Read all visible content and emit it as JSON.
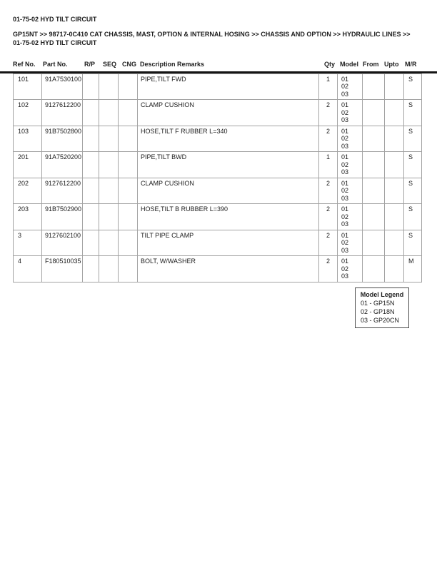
{
  "page": {
    "title": "01-75-02 HYD TILT CIRCUIT",
    "breadcrumb_line1": "GP15NT >> 98717-0C410 CAT CHASSIS, MAST, OPTION & INTERNAL HOSING >> CHASSIS AND OPTION >> HYDRAULIC LINES >>",
    "breadcrumb_line2": "01-75-02 HYD TILT CIRCUIT"
  },
  "table": {
    "headers": [
      "Ref No.",
      "Part No.",
      "R/P",
      "SEQ",
      "CNG",
      "Description Remarks",
      "Qty",
      "Model",
      "From",
      "Upto",
      "M/R"
    ],
    "rows": [
      {
        "ref": "101",
        "part": "91A7530100",
        "rp": "",
        "seq": "",
        "cng": "",
        "desc": "PIPE,TILT FWD",
        "qty": "1",
        "models": [
          "01",
          "02",
          "03"
        ],
        "from": "",
        "upto": "",
        "mr": "S"
      },
      {
        "ref": "102",
        "part": "9127612200",
        "rp": "",
        "seq": "",
        "cng": "",
        "desc": "CLAMP CUSHION",
        "qty": "2",
        "models": [
          "01",
          "02",
          "03"
        ],
        "from": "",
        "upto": "",
        "mr": "S"
      },
      {
        "ref": "103",
        "part": "91B7502800",
        "rp": "",
        "seq": "",
        "cng": "",
        "desc": "HOSE,TILT F RUBBER L=340",
        "qty": "2",
        "models": [
          "01",
          "02",
          "03"
        ],
        "from": "",
        "upto": "",
        "mr": "S"
      },
      {
        "ref": "201",
        "part": "91A7520200",
        "rp": "",
        "seq": "",
        "cng": "",
        "desc": "PIPE,TILT BWD",
        "qty": "1",
        "models": [
          "01",
          "02",
          "03"
        ],
        "from": "",
        "upto": "",
        "mr": "S"
      },
      {
        "ref": "202",
        "part": "9127612200",
        "rp": "",
        "seq": "",
        "cng": "",
        "desc": "CLAMP CUSHION",
        "qty": "2",
        "models": [
          "01",
          "02",
          "03"
        ],
        "from": "",
        "upto": "",
        "mr": "S"
      },
      {
        "ref": "203",
        "part": "91B7502900",
        "rp": "",
        "seq": "",
        "cng": "",
        "desc": "HOSE,TILT B RUBBER L=390",
        "qty": "2",
        "models": [
          "01",
          "02",
          "03"
        ],
        "from": "",
        "upto": "",
        "mr": "S"
      },
      {
        "ref": "3",
        "part": "9127602100",
        "rp": "",
        "seq": "",
        "cng": "",
        "desc": "TILT PIPE CLAMP",
        "qty": "2",
        "models": [
          "01",
          "02",
          "03"
        ],
        "from": "",
        "upto": "",
        "mr": "S"
      },
      {
        "ref": "4",
        "part": "F180510035",
        "rp": "",
        "seq": "",
        "cng": "",
        "desc": "BOLT, W/WASHER",
        "qty": "2",
        "models": [
          "01",
          "02",
          "03"
        ],
        "from": "",
        "upto": "",
        "mr": "M"
      }
    ]
  },
  "legend": {
    "title": "Model Legend",
    "items": [
      "01 - GP15N",
      "02 - GP18N",
      "03 - GP20CN"
    ]
  }
}
